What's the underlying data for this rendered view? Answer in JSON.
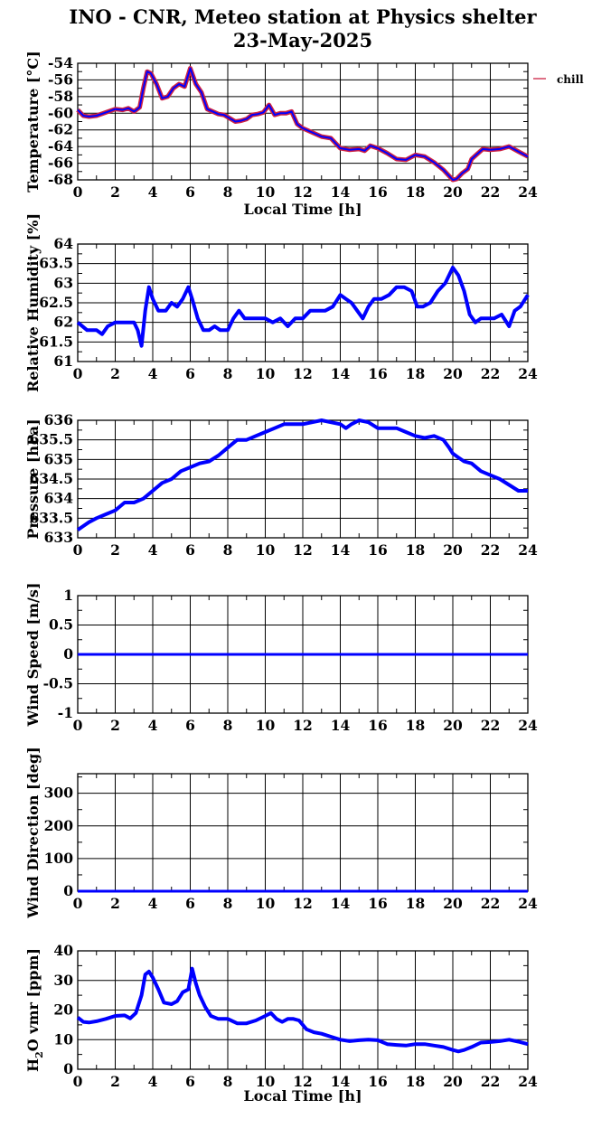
{
  "title_line1": "INO - CNR, Meteo station at Physics shelter",
  "title_line2": "23-May-2025",
  "colors": {
    "series": "#0000ff",
    "temperature_overlay": "#cc2244",
    "grid": "#000000"
  },
  "chart_data": [
    {
      "type": "line",
      "ylabel": "Temperature [°C]",
      "xlabel": "Local Time [h]",
      "xlim": [
        0,
        24
      ],
      "ylim": [
        -68,
        -54
      ],
      "yticks": [
        -68,
        -66,
        -64,
        -62,
        -60,
        -58,
        -56,
        -54
      ],
      "ytick_labels": [
        "-68",
        "-66",
        "-64",
        "-62",
        "-60",
        "-58",
        "-56",
        "-54"
      ],
      "grid": true,
      "legend": "top-right outside",
      "series": [
        {
          "name": "chill",
          "color": "#cc2244",
          "x": [
            0,
            0.3,
            0.6,
            1,
            1.5,
            2,
            2.4,
            2.7,
            3,
            3.3,
            3.5,
            3.7,
            3.9,
            4.2,
            4.5,
            4.8,
            5.1,
            5.4,
            5.7,
            6,
            6.3,
            6.6,
            6.9,
            7.2,
            7.5,
            7.8,
            8.1,
            8.4,
            8.7,
            9,
            9.3,
            9.6,
            9.9,
            10.2,
            10.5,
            10.8,
            11.1,
            11.4,
            11.7,
            12,
            12.5,
            13,
            13.5,
            14,
            14.5,
            15,
            15.3,
            15.6,
            16,
            16.5,
            17,
            17.5,
            18,
            18.5,
            19,
            19.5,
            20,
            20.2,
            20.5,
            20.8,
            21,
            21.3,
            21.6,
            22,
            22.5,
            23,
            23.5,
            24
          ],
          "y": [
            -59.6,
            -60.3,
            -60.4,
            -60.3,
            -59.9,
            -59.5,
            -59.6,
            -59.4,
            -59.8,
            -59.3,
            -57,
            -55,
            -55.2,
            -56.5,
            -58.2,
            -58,
            -57,
            -56.5,
            -56.8,
            -54.6,
            -56.5,
            -57.5,
            -59.5,
            -59.8,
            -60.1,
            -60.2,
            -60.6,
            -61,
            -60.9,
            -60.7,
            -60.2,
            -60.1,
            -59.9,
            -59,
            -60.2,
            -60,
            -60,
            -59.8,
            -61.3,
            -61.8,
            -62.3,
            -62.8,
            -63,
            -64.2,
            -64.4,
            -64.3,
            -64.5,
            -63.9,
            -64.2,
            -64.8,
            -65.5,
            -65.6,
            -65,
            -65.2,
            -65.9,
            -66.8,
            -68,
            -67.9,
            -67.2,
            -66.7,
            -65.5,
            -64.9,
            -64.3,
            -64.4,
            -64.3,
            -64,
            -64.6,
            -65.2
          ]
        },
        {
          "name": "",
          "color": "#0000ff",
          "x": [
            0,
            0.3,
            0.6,
            1,
            1.5,
            2,
            2.4,
            2.7,
            3,
            3.3,
            3.5,
            3.7,
            3.9,
            4.2,
            4.5,
            4.8,
            5.1,
            5.4,
            5.7,
            6,
            6.3,
            6.6,
            6.9,
            7.2,
            7.5,
            7.8,
            8.1,
            8.4,
            8.7,
            9,
            9.3,
            9.6,
            9.9,
            10.2,
            10.5,
            10.8,
            11.1,
            11.4,
            11.7,
            12,
            12.5,
            13,
            13.5,
            14,
            14.5,
            15,
            15.3,
            15.6,
            16,
            16.5,
            17,
            17.5,
            18,
            18.5,
            19,
            19.5,
            20,
            20.2,
            20.5,
            20.8,
            21,
            21.3,
            21.6,
            22,
            22.5,
            23,
            23.5,
            24
          ],
          "y": [
            -59.6,
            -60.3,
            -60.4,
            -60.3,
            -59.9,
            -59.5,
            -59.6,
            -59.4,
            -59.8,
            -59.3,
            -57,
            -55,
            -55.2,
            -56.5,
            -58.2,
            -58,
            -57,
            -56.5,
            -56.8,
            -54.6,
            -56.5,
            -57.5,
            -59.5,
            -59.8,
            -60.1,
            -60.2,
            -60.6,
            -61,
            -60.9,
            -60.7,
            -60.2,
            -60.1,
            -59.9,
            -59,
            -60.2,
            -60,
            -60,
            -59.8,
            -61.3,
            -61.8,
            -62.3,
            -62.8,
            -63,
            -64.2,
            -64.4,
            -64.3,
            -64.5,
            -63.9,
            -64.2,
            -64.8,
            -65.5,
            -65.6,
            -65,
            -65.2,
            -65.9,
            -66.8,
            -68,
            -67.9,
            -67.2,
            -66.7,
            -65.5,
            -64.9,
            -64.3,
            -64.4,
            -64.3,
            -64,
            -64.6,
            -65.2
          ]
        }
      ]
    },
    {
      "type": "line",
      "ylabel": "Relative Humidity [%]",
      "xlim": [
        0,
        24
      ],
      "ylim": [
        61,
        64
      ],
      "yticks": [
        61,
        61.5,
        62,
        62.5,
        63,
        63.5,
        64
      ],
      "ytick_labels": [
        "61",
        "61.5",
        "62",
        "62.5",
        "63",
        "63.5",
        "64"
      ],
      "grid": true,
      "series": [
        {
          "name": "",
          "color": "#0000ff",
          "x": [
            0,
            0.5,
            1,
            1.3,
            1.6,
            2,
            2.5,
            3,
            3.2,
            3.4,
            3.6,
            3.8,
            4,
            4.3,
            4.7,
            5,
            5.3,
            5.6,
            5.9,
            6.1,
            6.4,
            6.7,
            7,
            7.3,
            7.6,
            8,
            8.3,
            8.6,
            8.9,
            9.2,
            9.6,
            10,
            10.4,
            10.8,
            11.2,
            11.6,
            12,
            12.4,
            12.8,
            13.2,
            13.6,
            14,
            14.3,
            14.6,
            14.9,
            15.2,
            15.5,
            15.8,
            16.2,
            16.6,
            17,
            17.4,
            17.8,
            18.1,
            18.4,
            18.8,
            19.2,
            19.6,
            20,
            20.3,
            20.6,
            20.9,
            21.2,
            21.5,
            21.8,
            22.2,
            22.6,
            23,
            23.3,
            23.6,
            24
          ],
          "y": [
            62,
            61.8,
            61.8,
            61.7,
            61.9,
            62,
            62,
            62,
            61.8,
            61.4,
            62.3,
            62.9,
            62.6,
            62.3,
            62.3,
            62.5,
            62.4,
            62.6,
            62.9,
            62.6,
            62.1,
            61.8,
            61.8,
            61.9,
            61.8,
            61.8,
            62.1,
            62.3,
            62.1,
            62.1,
            62.1,
            62.1,
            62,
            62.1,
            61.9,
            62.1,
            62.1,
            62.3,
            62.3,
            62.3,
            62.4,
            62.7,
            62.6,
            62.5,
            62.3,
            62.1,
            62.4,
            62.6,
            62.6,
            62.7,
            62.9,
            62.9,
            62.8,
            62.4,
            62.4,
            62.5,
            62.8,
            63,
            63.4,
            63.2,
            62.8,
            62.2,
            62,
            62.1,
            62.1,
            62.1,
            62.2,
            61.9,
            62.3,
            62.4,
            62.7
          ]
        }
      ]
    },
    {
      "type": "line",
      "ylabel": "Pressure [hPa]",
      "xlim": [
        0,
        24
      ],
      "ylim": [
        633,
        636
      ],
      "yticks": [
        633,
        633.5,
        634,
        634.5,
        635,
        635.5,
        636
      ],
      "ytick_labels": [
        "633",
        "633.5",
        "634",
        "634.5",
        "635",
        "635.5",
        "636"
      ],
      "grid": true,
      "series": [
        {
          "name": "",
          "color": "#0000ff",
          "x": [
            0,
            0.3,
            0.6,
            1,
            1.5,
            2,
            2.5,
            3,
            3.5,
            4,
            4.5,
            5,
            5.5,
            6,
            6.5,
            7,
            7.5,
            8,
            8.5,
            9,
            9.5,
            10,
            10.5,
            11,
            11.5,
            12,
            12.5,
            13,
            13.5,
            14,
            14.3,
            14.6,
            15,
            15.5,
            16,
            16.5,
            17,
            17.5,
            18,
            18.5,
            19,
            19.5,
            19.8,
            20,
            20.3,
            20.6,
            21,
            21.5,
            22,
            22.5,
            23,
            23.5,
            24
          ],
          "y": [
            633.2,
            633.3,
            633.4,
            633.5,
            633.6,
            633.7,
            633.9,
            633.9,
            634,
            634.2,
            634.4,
            634.5,
            634.7,
            634.8,
            634.9,
            634.95,
            635.1,
            635.3,
            635.5,
            635.5,
            635.6,
            635.7,
            635.8,
            635.9,
            635.9,
            635.9,
            635.95,
            636,
            635.95,
            635.9,
            635.8,
            635.9,
            636,
            635.95,
            635.8,
            635.8,
            635.8,
            635.7,
            635.6,
            635.55,
            635.6,
            635.5,
            635.3,
            635.15,
            635.05,
            634.95,
            634.9,
            634.7,
            634.6,
            634.5,
            634.35,
            634.2,
            634.2
          ]
        }
      ]
    },
    {
      "type": "line",
      "ylabel": "Wind Speed [m/s]",
      "xlim": [
        0,
        24
      ],
      "ylim": [
        -1,
        1
      ],
      "yticks": [
        -1,
        -0.5,
        0,
        0.5,
        1
      ],
      "ytick_labels": [
        "-1",
        "-0.5",
        "0",
        "0.5",
        "1"
      ],
      "grid": true,
      "series": [
        {
          "name": "",
          "color": "#0000ff",
          "x": [
            0,
            24
          ],
          "y": [
            0,
            0
          ]
        }
      ]
    },
    {
      "type": "line",
      "ylabel": "Wind Direction [deg]",
      "xlim": [
        0,
        24
      ],
      "ylim": [
        0,
        360
      ],
      "yticks": [
        0,
        100,
        200,
        300
      ],
      "ytick_labels": [
        "0",
        "100",
        "200",
        "300"
      ],
      "grid": true,
      "series": [
        {
          "name": "",
          "color": "#0000ff",
          "x": [
            0,
            24
          ],
          "y": [
            0,
            0
          ]
        }
      ]
    },
    {
      "type": "line",
      "ylabel": "H₂O vmr [ppm]",
      "xlabel": "Local Time [h]",
      "xlim": [
        0,
        24
      ],
      "ylim": [
        0,
        40
      ],
      "yticks": [
        0,
        10,
        20,
        30,
        40
      ],
      "ytick_labels": [
        "0",
        "10",
        "20",
        "30",
        "40"
      ],
      "grid": true,
      "series": [
        {
          "name": "",
          "color": "#0000ff",
          "x": [
            0,
            0.3,
            0.6,
            1,
            1.5,
            2,
            2.5,
            2.8,
            3.1,
            3.4,
            3.6,
            3.8,
            4,
            4.3,
            4.6,
            5,
            5.3,
            5.6,
            5.9,
            6.1,
            6.3,
            6.5,
            6.8,
            7.1,
            7.5,
            8,
            8.5,
            9,
            9.5,
            10,
            10.3,
            10.6,
            10.9,
            11.2,
            11.5,
            11.8,
            12.2,
            12.6,
            13,
            13.5,
            14,
            14.5,
            15,
            15.5,
            16,
            16.5,
            17,
            17.5,
            18,
            18.5,
            19,
            19.5,
            20,
            20.3,
            20.6,
            21,
            21.5,
            22,
            22.5,
            23,
            23.5,
            24
          ],
          "y": [
            17.5,
            16,
            15.8,
            16.2,
            17,
            18,
            18.2,
            17.2,
            19,
            25,
            32,
            33,
            31,
            27,
            22.5,
            22,
            23,
            26,
            27,
            34,
            29,
            25,
            21,
            18,
            17,
            17,
            15.5,
            15.5,
            16.5,
            18,
            19,
            17,
            16,
            17,
            17,
            16.5,
            13.5,
            12.5,
            12,
            11,
            10,
            9.5,
            9.8,
            10,
            9.8,
            8.5,
            8.2,
            8,
            8.5,
            8.5,
            8,
            7.5,
            6.5,
            6,
            6.5,
            7.5,
            9,
            9.2,
            9.5,
            10,
            9.3,
            8.5
          ]
        }
      ]
    }
  ],
  "legend_label": "chill",
  "x_ticks": [
    0,
    2,
    4,
    6,
    8,
    10,
    12,
    14,
    16,
    18,
    20,
    22,
    24
  ],
  "x_tick_labels": [
    "0",
    "2",
    "4",
    "6",
    "8",
    "10",
    "12",
    "14",
    "16",
    "18",
    "20",
    "22",
    "24"
  ]
}
